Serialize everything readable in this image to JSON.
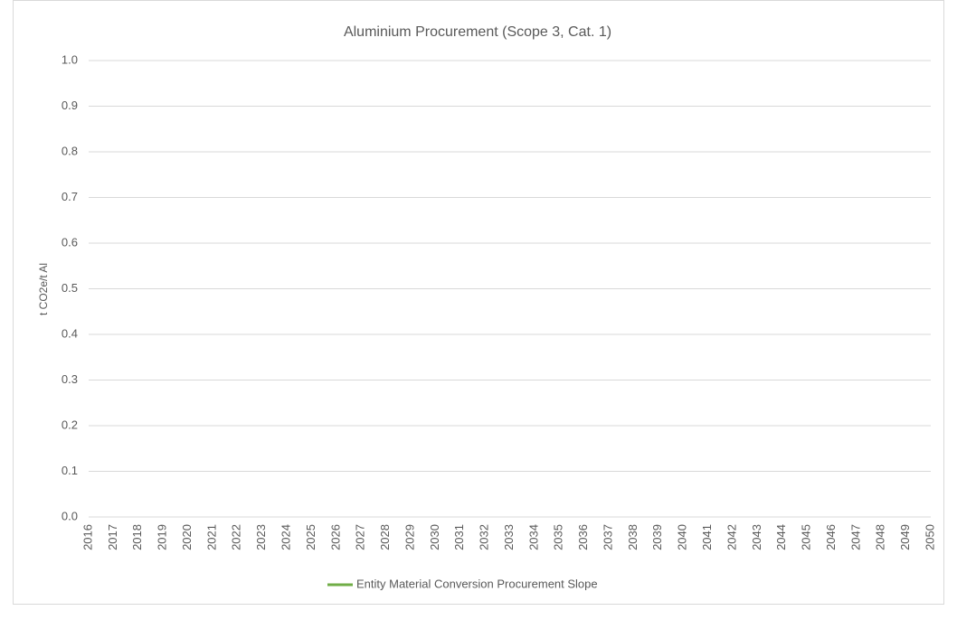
{
  "chart_data": {
    "type": "line",
    "title": "Aluminium Procurement (Scope 3, Cat. 1)",
    "y_label": "t CO2e/t Al",
    "categories": [
      "2016",
      "2017",
      "2018",
      "2019",
      "2020",
      "2021",
      "2022",
      "2023",
      "2024",
      "2025",
      "2026",
      "2027",
      "2028",
      "2029",
      "2030",
      "2031",
      "2032",
      "2033",
      "2034",
      "2035",
      "2036",
      "2037",
      "2038",
      "2039",
      "2040",
      "2041",
      "2042",
      "2043",
      "2044",
      "2045",
      "2046",
      "2047",
      "2048",
      "2049",
      "2050"
    ],
    "series": [
      {
        "name": "Entity Material Conversion Procurement Slope",
        "color": "#70ad47",
        "values": [
          null,
          null,
          null,
          null,
          null,
          null,
          null,
          null,
          null,
          null,
          null,
          null,
          null,
          null,
          null,
          null,
          null,
          null,
          null,
          null,
          null,
          null,
          null,
          null,
          null,
          null,
          null,
          null,
          null,
          null,
          null,
          null,
          null,
          null,
          null
        ]
      }
    ],
    "ylim": [
      0,
      1
    ],
    "yticks": [
      {
        "value": 0,
        "label": "0.0"
      },
      0.1,
      0.2,
      0.3,
      0.4,
      0.5,
      0.6,
      0.7,
      0.8,
      0.9,
      {
        "value": 1,
        "label": "1.0"
      }
    ],
    "grid": true,
    "legend": "bottom"
  }
}
